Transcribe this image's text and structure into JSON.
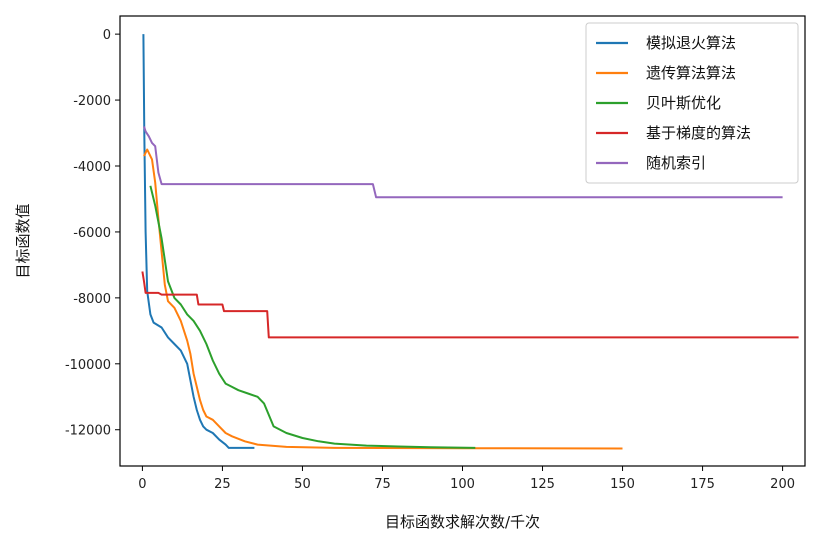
{
  "chart_data": {
    "type": "line",
    "title": "",
    "xlabel": "目标函数求解次数/千次",
    "ylabel": "目标函数值",
    "xlim": [
      -7,
      207
    ],
    "ylim": [
      -13100,
      550
    ],
    "xticks": [
      0,
      25,
      50,
      75,
      100,
      125,
      150,
      175,
      200
    ],
    "yticks": [
      0,
      -2000,
      -4000,
      -6000,
      -8000,
      -10000,
      -12000
    ],
    "grid": false,
    "legend_position": "top-right",
    "series": [
      {
        "name": "模拟退火算法",
        "color": "#1f77b4",
        "points": [
          [
            0.3,
            0
          ],
          [
            0.6,
            -3000
          ],
          [
            1,
            -6000
          ],
          [
            1.5,
            -7800
          ],
          [
            2.5,
            -8500
          ],
          [
            3.5,
            -8750
          ],
          [
            6,
            -8900
          ],
          [
            8,
            -9200
          ],
          [
            10,
            -9400
          ],
          [
            12,
            -9600
          ],
          [
            14,
            -10000
          ],
          [
            15,
            -10500
          ],
          [
            16,
            -11000
          ],
          [
            17,
            -11400
          ],
          [
            18,
            -11700
          ],
          [
            19,
            -11900
          ],
          [
            20,
            -12000
          ],
          [
            22,
            -12100
          ],
          [
            24,
            -12300
          ],
          [
            26,
            -12450
          ],
          [
            27,
            -12550
          ],
          [
            35,
            -12550
          ]
        ]
      },
      {
        "name": "遗传算法算法",
        "color": "#ff7f0e",
        "points": [
          [
            0.5,
            -3700
          ],
          [
            1.5,
            -3500
          ],
          [
            3,
            -3800
          ],
          [
            4,
            -4500
          ],
          [
            5,
            -5600
          ],
          [
            6,
            -6600
          ],
          [
            7,
            -7600
          ],
          [
            8,
            -8100
          ],
          [
            10,
            -8300
          ],
          [
            12,
            -8700
          ],
          [
            14,
            -9300
          ],
          [
            15,
            -9700
          ],
          [
            16,
            -10300
          ],
          [
            17,
            -10700
          ],
          [
            18,
            -11100
          ],
          [
            19,
            -11400
          ],
          [
            20,
            -11600
          ],
          [
            22,
            -11700
          ],
          [
            24,
            -11900
          ],
          [
            26,
            -12100
          ],
          [
            28,
            -12200
          ],
          [
            32,
            -12350
          ],
          [
            36,
            -12450
          ],
          [
            45,
            -12520
          ],
          [
            60,
            -12550
          ],
          [
            100,
            -12560
          ],
          [
            150,
            -12570
          ]
        ]
      },
      {
        "name": "贝叶斯优化",
        "color": "#2ca02c",
        "points": [
          [
            2.5,
            -4600
          ],
          [
            4,
            -5200
          ],
          [
            6,
            -6200
          ],
          [
            8,
            -7500
          ],
          [
            10,
            -8000
          ],
          [
            12,
            -8200
          ],
          [
            14,
            -8500
          ],
          [
            16,
            -8700
          ],
          [
            18,
            -9000
          ],
          [
            20,
            -9400
          ],
          [
            22,
            -9900
          ],
          [
            24,
            -10300
          ],
          [
            26,
            -10600
          ],
          [
            28,
            -10700
          ],
          [
            30,
            -10800
          ],
          [
            33,
            -10900
          ],
          [
            36,
            -11000
          ],
          [
            38,
            -11200
          ],
          [
            41,
            -11900
          ],
          [
            45,
            -12100
          ],
          [
            50,
            -12250
          ],
          [
            55,
            -12350
          ],
          [
            60,
            -12420
          ],
          [
            70,
            -12480
          ],
          [
            80,
            -12510
          ],
          [
            90,
            -12530
          ],
          [
            104,
            -12550
          ]
        ]
      },
      {
        "name": "基于梯度的算法",
        "color": "#d62728",
        "points": [
          [
            0,
            -7200
          ],
          [
            0.5,
            -7500
          ],
          [
            1,
            -7850
          ],
          [
            5,
            -7850
          ],
          [
            6,
            -7900
          ],
          [
            17,
            -7900
          ],
          [
            17.5,
            -8200
          ],
          [
            25,
            -8200
          ],
          [
            25.5,
            -8400
          ],
          [
            39,
            -8400
          ],
          [
            39.5,
            -9200
          ],
          [
            205,
            -9200
          ]
        ]
      },
      {
        "name": "随机索引",
        "color": "#9467bd",
        "points": [
          [
            0.5,
            -2800
          ],
          [
            1,
            -2950
          ],
          [
            2,
            -3100
          ],
          [
            3,
            -3300
          ],
          [
            4,
            -3400
          ],
          [
            5,
            -4200
          ],
          [
            6,
            -4550
          ],
          [
            72,
            -4550
          ],
          [
            73,
            -4950
          ],
          [
            200,
            -4950
          ]
        ]
      }
    ]
  }
}
